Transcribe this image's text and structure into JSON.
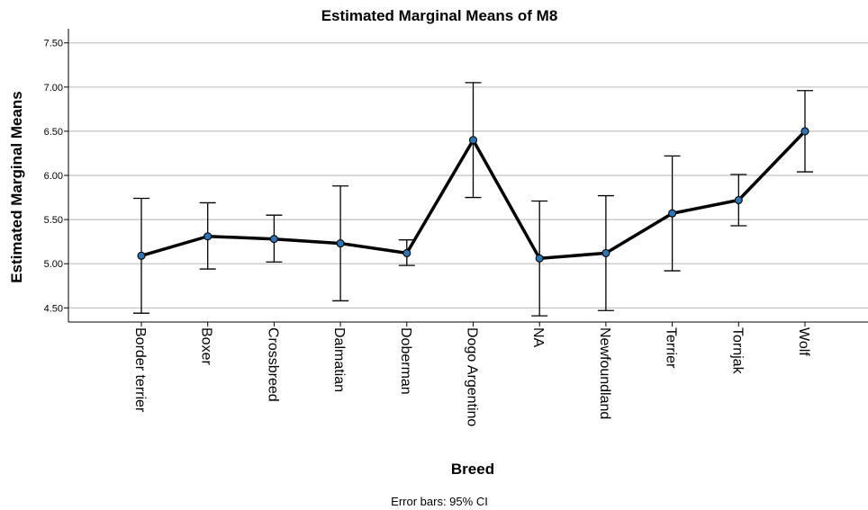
{
  "chart_data": {
    "type": "line",
    "title": "Estimated Marginal Means of M8",
    "xlabel": "Breed",
    "ylabel": "Estimated Marginal Means",
    "footnote": "Error bars: 95% CI",
    "categories": [
      "Border terrier",
      "Boxer",
      "Crossbreed",
      "Dalmatian",
      "Doberman",
      "Dogo Argentino",
      "NA",
      "Newfoundland",
      "Terrier",
      "Tornjak",
      "Wolf"
    ],
    "values": [
      5.09,
      5.31,
      5.28,
      5.23,
      5.12,
      6.4,
      5.06,
      5.12,
      5.57,
      5.72,
      6.5
    ],
    "ci_lower": [
      4.44,
      4.94,
      5.02,
      4.58,
      4.98,
      5.75,
      4.41,
      4.47,
      4.92,
      5.43,
      6.04
    ],
    "ci_upper": [
      5.74,
      5.69,
      5.55,
      5.88,
      5.27,
      7.05,
      5.71,
      5.77,
      6.22,
      6.01,
      6.96
    ],
    "yticks": [
      "4.50",
      "5.00",
      "5.50",
      "6.00",
      "6.50",
      "7.00",
      "7.50"
    ],
    "ylim": [
      4.34,
      7.66
    ],
    "grid": true,
    "colors": {
      "line": "#000000",
      "marker": "#2e75b6",
      "grid": "#c0c0c0",
      "errorbar": "#000000"
    }
  }
}
